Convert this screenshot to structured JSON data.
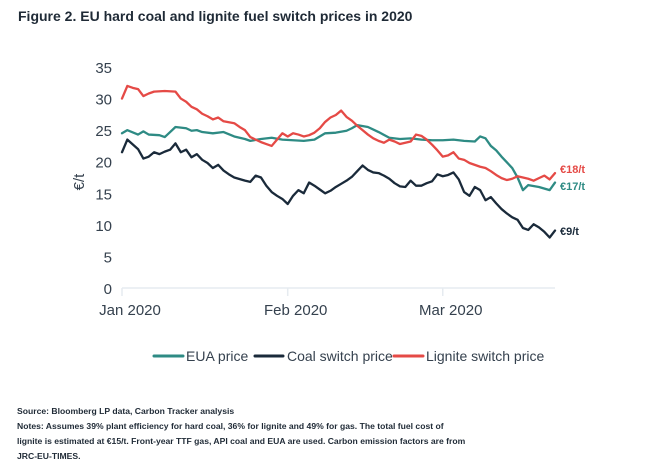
{
  "chart_data": {
    "type": "line",
    "title": "Figure 2. EU hard coal and lignite fuel switch prices in 2020",
    "xlabel": "",
    "ylabel": "€/t",
    "ylim": [
      0,
      35
    ],
    "yticks": [
      0,
      5,
      10,
      15,
      20,
      25,
      30,
      35
    ],
    "grid": false,
    "legend": "bottom",
    "x_range": [
      "Jan 2020",
      "end Mar 2020"
    ],
    "x_ticks": [
      {
        "label": "Jan 2020",
        "day": 0
      },
      {
        "label": "Feb 2020",
        "day": 31
      },
      {
        "label": "Mar 2020",
        "day": 60
      }
    ],
    "series": [
      {
        "name": "EUA price",
        "color": "#2e8b84",
        "end_label": "€17/t",
        "points": [
          [
            0,
            24.5
          ],
          [
            1,
            25.0
          ],
          [
            3,
            24.3
          ],
          [
            4,
            24.8
          ],
          [
            5,
            24.3
          ],
          [
            7,
            24.2
          ],
          [
            8,
            23.9
          ],
          [
            9,
            24.7
          ],
          [
            10,
            25.5
          ],
          [
            12,
            25.3
          ],
          [
            13,
            24.9
          ],
          [
            14,
            25.0
          ],
          [
            15,
            24.7
          ],
          [
            17,
            24.5
          ],
          [
            19,
            24.7
          ],
          [
            21,
            24.0
          ],
          [
            23,
            23.6
          ],
          [
            24,
            23.3
          ],
          [
            26,
            23.6
          ],
          [
            28,
            23.8
          ],
          [
            30,
            23.5
          ],
          [
            32,
            23.4
          ],
          [
            34,
            23.3
          ],
          [
            36,
            23.5
          ],
          [
            38,
            24.5
          ],
          [
            40,
            24.6
          ],
          [
            42,
            24.9
          ],
          [
            43,
            25.3
          ],
          [
            44,
            25.8
          ],
          [
            46,
            25.5
          ],
          [
            48,
            24.7
          ],
          [
            50,
            23.8
          ],
          [
            52,
            23.6
          ],
          [
            54,
            23.7
          ],
          [
            56,
            23.5
          ],
          [
            58,
            23.4
          ],
          [
            60,
            23.4
          ],
          [
            62,
            23.5
          ],
          [
            64,
            23.3
          ],
          [
            66,
            23.2
          ],
          [
            67,
            24.0
          ],
          [
            68,
            23.7
          ],
          [
            69,
            22.5
          ],
          [
            70,
            21.8
          ],
          [
            71,
            20.8
          ],
          [
            73,
            19.0
          ],
          [
            74,
            17.5
          ],
          [
            75,
            15.5
          ],
          [
            76,
            16.3
          ],
          [
            78,
            16.0
          ],
          [
            80,
            15.5
          ],
          [
            81,
            16.7
          ]
        ]
      },
      {
        "name": "Coal switch price",
        "color": "#1a2a3a",
        "end_label": "€9/t",
        "points": [
          [
            0,
            21.5
          ],
          [
            1,
            23.5
          ],
          [
            3,
            22.0
          ],
          [
            4,
            20.5
          ],
          [
            5,
            20.8
          ],
          [
            6,
            21.5
          ],
          [
            7,
            21.2
          ],
          [
            8,
            21.6
          ],
          [
            9,
            21.9
          ],
          [
            10,
            22.9
          ],
          [
            11,
            21.5
          ],
          [
            12,
            21.9
          ],
          [
            13,
            20.7
          ],
          [
            14,
            21.2
          ],
          [
            15,
            20.3
          ],
          [
            16,
            19.8
          ],
          [
            17,
            19.0
          ],
          [
            18,
            19.5
          ],
          [
            19,
            18.6
          ],
          [
            20,
            18.0
          ],
          [
            21,
            17.5
          ],
          [
            23,
            17.0
          ],
          [
            24,
            16.8
          ],
          [
            25,
            17.8
          ],
          [
            26,
            17.5
          ],
          [
            27,
            16.2
          ],
          [
            28,
            15.2
          ],
          [
            29,
            14.6
          ],
          [
            30,
            14.1
          ],
          [
            31,
            13.3
          ],
          [
            32,
            14.6
          ],
          [
            33,
            15.5
          ],
          [
            34,
            15.0
          ],
          [
            35,
            16.7
          ],
          [
            36,
            16.2
          ],
          [
            37,
            15.6
          ],
          [
            38,
            15.0
          ],
          [
            39,
            15.4
          ],
          [
            40,
            16.0
          ],
          [
            41,
            16.5
          ],
          [
            42,
            17.0
          ],
          [
            43,
            17.6
          ],
          [
            44,
            18.5
          ],
          [
            45,
            19.4
          ],
          [
            46,
            18.7
          ],
          [
            47,
            18.3
          ],
          [
            48,
            18.2
          ],
          [
            49,
            17.8
          ],
          [
            50,
            17.3
          ],
          [
            51,
            16.6
          ],
          [
            52,
            16.1
          ],
          [
            53,
            16.0
          ],
          [
            54,
            17.0
          ],
          [
            55,
            16.2
          ],
          [
            56,
            16.2
          ],
          [
            57,
            16.6
          ],
          [
            58,
            16.9
          ],
          [
            59,
            18.0
          ],
          [
            60,
            17.7
          ],
          [
            61,
            17.9
          ],
          [
            62,
            18.3
          ],
          [
            63,
            17.2
          ],
          [
            64,
            15.2
          ],
          [
            65,
            14.6
          ],
          [
            66,
            16.0
          ],
          [
            67,
            15.5
          ],
          [
            68,
            13.9
          ],
          [
            69,
            14.4
          ],
          [
            70,
            13.4
          ],
          [
            71,
            12.5
          ],
          [
            72,
            11.8
          ],
          [
            73,
            11.2
          ],
          [
            74,
            10.8
          ],
          [
            75,
            9.5
          ],
          [
            76,
            9.2
          ],
          [
            77,
            10.1
          ],
          [
            78,
            9.6
          ],
          [
            79,
            8.9
          ],
          [
            80,
            8.0
          ],
          [
            81,
            9.1
          ]
        ]
      },
      {
        "name": "Lignite switch price",
        "color": "#e54a46",
        "end_label": "€18/t",
        "points": [
          [
            0,
            30.0
          ],
          [
            1,
            32.0
          ],
          [
            2,
            31.7
          ],
          [
            3,
            31.5
          ],
          [
            4,
            30.4
          ],
          [
            5,
            30.8
          ],
          [
            6,
            31.1
          ],
          [
            8,
            31.2
          ],
          [
            10,
            31.1
          ],
          [
            11,
            30.0
          ],
          [
            12,
            29.5
          ],
          [
            13,
            28.7
          ],
          [
            14,
            28.3
          ],
          [
            15,
            27.6
          ],
          [
            16,
            27.2
          ],
          [
            17,
            26.7
          ],
          [
            18,
            27.0
          ],
          [
            19,
            26.4
          ],
          [
            21,
            26.1
          ],
          [
            22,
            25.5
          ],
          [
            23,
            25.0
          ],
          [
            24,
            23.9
          ],
          [
            25,
            23.5
          ],
          [
            26,
            23.1
          ],
          [
            27,
            22.8
          ],
          [
            28,
            22.5
          ],
          [
            29,
            23.5
          ],
          [
            30,
            24.5
          ],
          [
            31,
            24.0
          ],
          [
            32,
            24.5
          ],
          [
            33,
            24.3
          ],
          [
            34,
            24.0
          ],
          [
            35,
            24.2
          ],
          [
            36,
            24.6
          ],
          [
            37,
            25.3
          ],
          [
            38,
            26.3
          ],
          [
            39,
            27.0
          ],
          [
            40,
            27.4
          ],
          [
            41,
            28.1
          ],
          [
            42,
            27.1
          ],
          [
            43,
            26.5
          ],
          [
            44,
            25.7
          ],
          [
            45,
            25.0
          ],
          [
            46,
            24.3
          ],
          [
            47,
            23.7
          ],
          [
            48,
            23.3
          ],
          [
            49,
            23.0
          ],
          [
            50,
            23.5
          ],
          [
            51,
            23.2
          ],
          [
            52,
            22.8
          ],
          [
            53,
            23.0
          ],
          [
            54,
            23.2
          ],
          [
            55,
            24.3
          ],
          [
            56,
            24.1
          ],
          [
            57,
            23.5
          ],
          [
            58,
            22.7
          ],
          [
            59,
            21.8
          ],
          [
            60,
            20.8
          ],
          [
            61,
            21.0
          ],
          [
            62,
            21.5
          ],
          [
            63,
            20.5
          ],
          [
            64,
            20.3
          ],
          [
            65,
            19.8
          ],
          [
            66,
            19.5
          ],
          [
            67,
            19.2
          ],
          [
            68,
            19.0
          ],
          [
            69,
            18.5
          ],
          [
            70,
            17.9
          ],
          [
            71,
            17.4
          ],
          [
            72,
            17.1
          ],
          [
            73,
            17.3
          ],
          [
            74,
            17.7
          ],
          [
            75,
            17.5
          ],
          [
            76,
            17.3
          ],
          [
            77,
            17.0
          ],
          [
            78,
            17.4
          ],
          [
            79,
            17.8
          ],
          [
            80,
            17.2
          ],
          [
            81,
            18.2
          ]
        ]
      }
    ]
  },
  "notes": {
    "source": "Source: Bloomberg LP data, Carbon Tracker analysis",
    "line1": "Notes: Assumes 39% plant efficiency for hard coal, 36% for lignite and 49% for gas. The total fuel cost of",
    "line2": "lignite is estimated at €15/t. Front-year TTF gas, API coal and EUA are used. Carbon emission factors are from",
    "line3": "JRC-EU-TIMES."
  }
}
